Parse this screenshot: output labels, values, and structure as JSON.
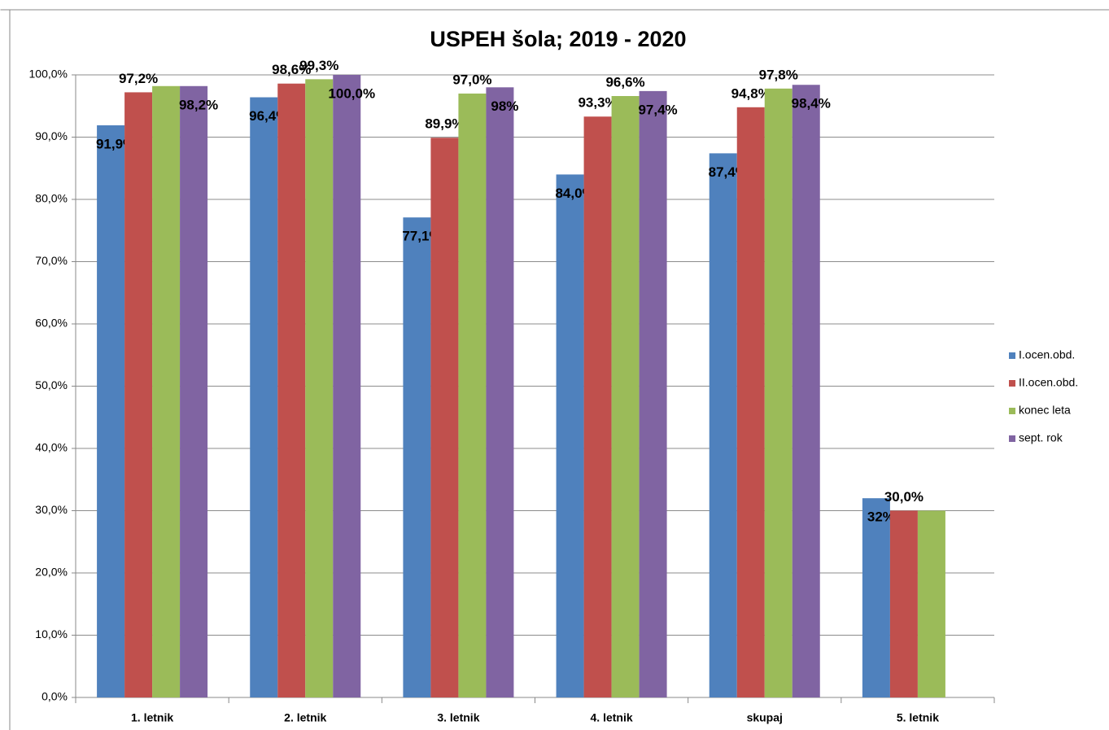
{
  "chart_data": {
    "type": "bar",
    "title": "USPEH šola; 2019 - 2020",
    "categories": [
      "1. letnik",
      "2. letnik",
      "3. letnik",
      "4. letnik",
      "skupaj",
      "5. letnik"
    ],
    "series": [
      {
        "name": "I.ocen.obd.",
        "color": "#4f81bd",
        "values": [
          91.9,
          96.4,
          77.1,
          84.0,
          87.4,
          32
        ],
        "value_labels": [
          "91,9%",
          "96,4%",
          "77,1%",
          "84,0%",
          "87,4%",
          "32%"
        ]
      },
      {
        "name": "II.ocen.obd.",
        "color": "#c0504d",
        "values": [
          97.2,
          98.6,
          89.9,
          93.3,
          94.8,
          30.0
        ],
        "value_labels": [
          "97,2%",
          "98,6%",
          "89,9%",
          "93,3%",
          "94,8%",
          "30,0%"
        ]
      },
      {
        "name": "konec leta",
        "color": "#9bbb59",
        "values": [
          98.2,
          99.3,
          97.0,
          96.6,
          97.8,
          30.0
        ],
        "value_labels": [
          null,
          "99,3%",
          "97,0%",
          "96,6%",
          "97,8%",
          null
        ]
      },
      {
        "name": "sept. rok",
        "color": "#8064a2",
        "values": [
          98.2,
          100.0,
          98,
          97.4,
          98.4,
          null
        ],
        "value_labels": [
          "98,2%",
          "100,0%",
          "98%",
          "97,4%",
          "98,4%",
          null
        ]
      }
    ],
    "ylim": [
      0,
      100
    ],
    "yticks": [
      {
        "value": 0,
        "label": "0,0%"
      },
      {
        "value": 10,
        "label": "10,0%"
      },
      {
        "value": 20,
        "label": "20,0%"
      },
      {
        "value": 30,
        "label": "30,0%"
      },
      {
        "value": 40,
        "label": "40,0%"
      },
      {
        "value": 50,
        "label": "50,0%"
      },
      {
        "value": 60,
        "label": "60,0%"
      },
      {
        "value": 70,
        "label": "70,0%"
      },
      {
        "value": 80,
        "label": "80,0%"
      },
      {
        "value": 90,
        "label": "90,0%"
      },
      {
        "value": 100,
        "label": "100,0%"
      }
    ],
    "grid": true,
    "legend": "right"
  }
}
